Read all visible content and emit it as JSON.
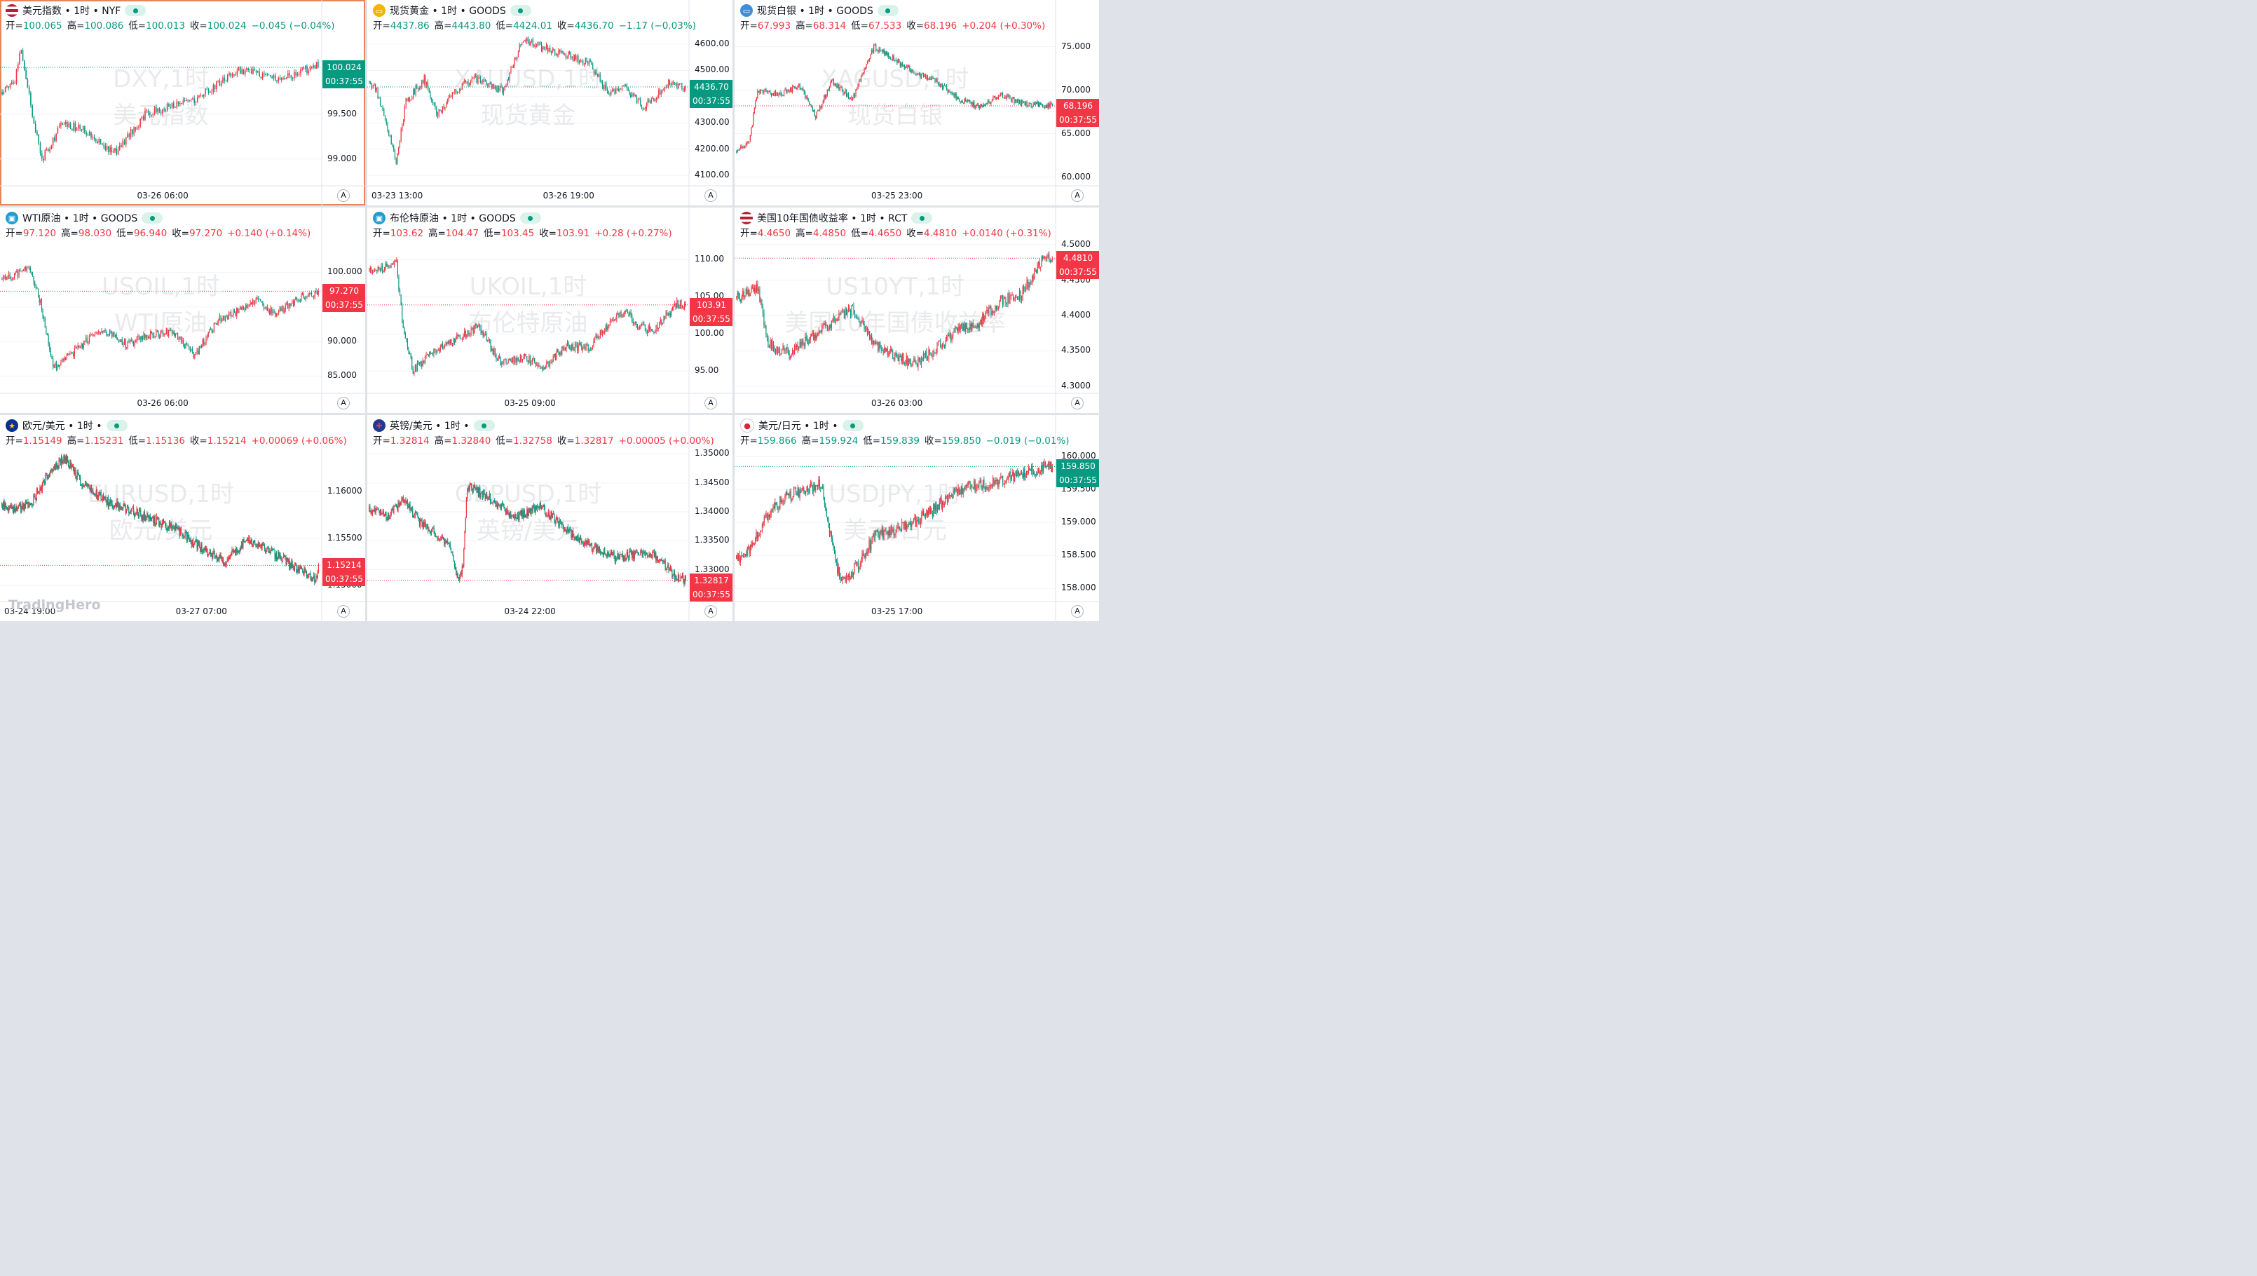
{
  "brand": "TradingHero",
  "labels": {
    "open": "开=",
    "high": "高=",
    "low": "低=",
    "close": "收="
  },
  "colors": {
    "up": "#f23645",
    "down": "#089981",
    "grid": "#f0f3fa",
    "axis_line": "#e0e3eb",
    "background": "#ffffff"
  },
  "panels": [
    {
      "title": "美元指数 • 1时 • NYF",
      "flag": "us-flag-icon",
      "wm1": "DXY,1时",
      "wm2": "美元指数",
      "ohlc": {
        "open": "100.065",
        "high": "100.086",
        "low": "100.013",
        "close": "100.024",
        "change": "−0.045 (−0.04%)"
      },
      "dir": "down",
      "price": "100.024",
      "countdown": "00:37:55",
      "yticks": [
        "99.000",
        "99.500"
      ],
      "xticks": [
        "03-26 06:00"
      ],
      "axis_btn": "A",
      "chart_data": {
        "type": "candlestick",
        "ylim": [
          98.7,
          100.4
        ],
        "y_ticks": [
          99.0,
          99.5
        ],
        "last": 100.024,
        "start": 99.75,
        "waypoints": [
          [
            0,
            99.75
          ],
          [
            8,
            99.9
          ],
          [
            12,
            100.25
          ],
          [
            18,
            99.6
          ],
          [
            25,
            99.0
          ],
          [
            38,
            99.4
          ],
          [
            55,
            99.3
          ],
          [
            70,
            99.05
          ],
          [
            90,
            99.5
          ],
          [
            120,
            99.65
          ],
          [
            150,
            100.0
          ],
          [
            175,
            99.9
          ],
          [
            200,
            100.05
          ]
        ],
        "noise": 0.05,
        "count": 200
      }
    },
    {
      "title": "现货黄金 • 1时 • GOODS",
      "flag": "gold-icon",
      "wm1": "XAUUSD,1时",
      "wm2": "现货黄金",
      "ohlc": {
        "open": "4437.86",
        "high": "4443.80",
        "low": "4424.01",
        "close": "4436.70",
        "change": "−1.17 (−0.03%)"
      },
      "dir": "down",
      "price": "4436.70",
      "countdown": "00:37:55",
      "yticks": [
        "4100.00",
        "4200.00",
        "4300.00",
        "4400.00",
        "4500.00",
        "4600.00"
      ],
      "xticks": [
        "03-23 13:00",
        "03-26 19:00"
      ],
      "axis_btn": "A",
      "chart_data": {
        "type": "candlestick",
        "ylim": [
          4060,
          4640
        ],
        "y_ticks": [
          4100,
          4200,
          4300,
          4400,
          4500,
          4600
        ],
        "last": 4436.7,
        "start": 4460,
        "waypoints": [
          [
            0,
            4460
          ],
          [
            6,
            4420
          ],
          [
            14,
            4300
          ],
          [
            22,
            4150
          ],
          [
            30,
            4380
          ],
          [
            45,
            4470
          ],
          [
            55,
            4330
          ],
          [
            70,
            4420
          ],
          [
            85,
            4470
          ],
          [
            110,
            4420
          ],
          [
            125,
            4620
          ],
          [
            140,
            4590
          ],
          [
            160,
            4560
          ],
          [
            180,
            4530
          ],
          [
            195,
            4420
          ],
          [
            210,
            4430
          ],
          [
            225,
            4360
          ],
          [
            245,
            4450
          ],
          [
            260,
            4436
          ]
        ],
        "noise": 15,
        "count": 260
      }
    },
    {
      "title": "现货白银 • 1时 • GOODS",
      "flag": "silver-icon",
      "wm1": "XAGUSD,1时",
      "wm2": "现货白银",
      "ohlc": {
        "open": "67.993",
        "high": "68.314",
        "low": "67.533",
        "close": "68.196",
        "change": "+0.204 (+0.30%)"
      },
      "dir": "up",
      "price": "68.196",
      "countdown": "00:37:55",
      "yticks": [
        "60.000",
        "65.000",
        "70.000",
        "75.000"
      ],
      "xticks": [
        "03-25 23:00"
      ],
      "axis_btn": "A",
      "chart_data": {
        "type": "candlestick",
        "ylim": [
          59,
          76.5
        ],
        "y_ticks": [
          60,
          65,
          70,
          75
        ],
        "last": 68.196,
        "start": 63,
        "waypoints": [
          [
            0,
            63
          ],
          [
            12,
            64
          ],
          [
            20,
            70
          ],
          [
            40,
            69.5
          ],
          [
            60,
            70.5
          ],
          [
            75,
            67
          ],
          [
            90,
            71
          ],
          [
            110,
            69
          ],
          [
            130,
            75
          ],
          [
            150,
            73.5
          ],
          [
            170,
            72
          ],
          [
            190,
            71
          ],
          [
            210,
            69
          ],
          [
            230,
            68
          ],
          [
            250,
            69.5
          ],
          [
            270,
            68.5
          ],
          [
            300,
            68.2
          ]
        ],
        "noise": 0.35,
        "count": 300
      }
    },
    {
      "title": "WTI原油 • 1时 • GOODS",
      "flag": "oil-icon",
      "wm1": "USOIL,1时",
      "wm2": "WTI原油",
      "ohlc": {
        "open": "97.120",
        "high": "98.030",
        "low": "96.940",
        "close": "97.270",
        "change": "+0.140 (+0.14%)"
      },
      "dir": "up",
      "price": "97.270",
      "countdown": "00:37:55",
      "yticks": [
        "85.000",
        "90.000",
        "95.000",
        "100.000"
      ],
      "xticks": [
        "03-26 06:00"
      ],
      "axis_btn": "A",
      "chart_data": {
        "type": "candlestick",
        "ylim": [
          82.5,
          104.5
        ],
        "y_ticks": [
          85,
          90,
          95,
          100
        ],
        "last": 97.27,
        "start": 99,
        "waypoints": [
          [
            0,
            99
          ],
          [
            10,
            99.5
          ],
          [
            25,
            100.5
          ],
          [
            35,
            95
          ],
          [
            45,
            86
          ],
          [
            60,
            88
          ],
          [
            80,
            91
          ],
          [
            95,
            91.5
          ],
          [
            110,
            89.5
          ],
          [
            130,
            91
          ],
          [
            150,
            91.5
          ],
          [
            170,
            88
          ],
          [
            190,
            93
          ],
          [
            210,
            94.5
          ],
          [
            225,
            96
          ],
          [
            240,
            94
          ],
          [
            260,
            96
          ],
          [
            280,
            97.3
          ]
        ],
        "noise": 0.6,
        "count": 280
      }
    },
    {
      "title": "布伦特原油 • 1时 • GOODS",
      "flag": "oil-icon",
      "wm1": "UKOIL,1时",
      "wm2": "布伦特原油",
      "ohlc": {
        "open": "103.62",
        "high": "104.47",
        "low": "103.45",
        "close": "103.91",
        "change": "+0.28 (+0.27%)"
      },
      "dir": "up",
      "price": "103.91",
      "countdown": "00:37:55",
      "yticks": [
        "95.00",
        "100.00",
        "105.00",
        "110.00"
      ],
      "xticks": [
        "03-25 09:00"
      ],
      "axis_btn": "A",
      "chart_data": {
        "type": "candlestick",
        "ylim": [
          92,
          112.5
        ],
        "y_ticks": [
          95,
          100,
          105,
          110
        ],
        "last": 103.91,
        "start": 108.5,
        "waypoints": [
          [
            0,
            108.5
          ],
          [
            15,
            109
          ],
          [
            25,
            109.5
          ],
          [
            30,
            102
          ],
          [
            40,
            95
          ],
          [
            60,
            98
          ],
          [
            80,
            99.5
          ],
          [
            100,
            101
          ],
          [
            120,
            96
          ],
          [
            140,
            97
          ],
          [
            160,
            95.5
          ],
          [
            180,
            98.5
          ],
          [
            200,
            98
          ],
          [
            220,
            101.5
          ],
          [
            235,
            103
          ],
          [
            245,
            101
          ],
          [
            260,
            100.5
          ],
          [
            280,
            104
          ],
          [
            290,
            103.9
          ]
        ],
        "noise": 0.6,
        "count": 290
      }
    },
    {
      "title": "美国10年国债收益率 • 1时 • RCT",
      "flag": "us-flag-icon",
      "wm1": "US10YT,1时",
      "wm2": "美国10年国债收益率",
      "ohlc": {
        "open": "4.4650",
        "high": "4.4850",
        "low": "4.4650",
        "close": "4.4810",
        "change": "+0.0140 (+0.31%)"
      },
      "dir": "up",
      "price": "4.4810",
      "countdown": "00:37:55",
      "yticks": [
        "4.3000",
        "4.3500",
        "4.4000",
        "4.4500",
        "4.5000"
      ],
      "xticks": [
        "03-26 03:00"
      ],
      "axis_btn": "A",
      "chart_data": {
        "type": "candlestick",
        "ylim": [
          4.29,
          4.505
        ],
        "y_ticks": [
          4.3,
          4.35,
          4.4,
          4.45,
          4.5
        ],
        "last": 4.481,
        "start": 4.425,
        "waypoints": [
          [
            0,
            4.425
          ],
          [
            10,
            4.43
          ],
          [
            20,
            4.44
          ],
          [
            30,
            4.36
          ],
          [
            50,
            4.345
          ],
          [
            70,
            4.37
          ],
          [
            90,
            4.39
          ],
          [
            110,
            4.41
          ],
          [
            130,
            4.36
          ],
          [
            150,
            4.345
          ],
          [
            170,
            4.33
          ],
          [
            190,
            4.355
          ],
          [
            210,
            4.38
          ],
          [
            230,
            4.39
          ],
          [
            250,
            4.42
          ],
          [
            270,
            4.43
          ],
          [
            290,
            4.48
          ],
          [
            300,
            4.481
          ]
        ],
        "noise": 0.008,
        "count": 300
      }
    },
    {
      "title": "欧元/美元 • 1时 •",
      "flag": "eu-flag-icon",
      "wm1": "EURUSD,1时",
      "wm2": "欧元/美元",
      "ohlc": {
        "open": "1.15149",
        "high": "1.15231",
        "low": "1.15136",
        "close": "1.15214",
        "change": "+0.00069 (+0.06%)"
      },
      "dir": "up",
      "price": "1.15214",
      "countdown": "00:37:55",
      "yticks": [
        "1.15000",
        "1.15500",
        "1.16000"
      ],
      "xticks": [
        "03-24 19:00",
        "03-27 07:00"
      ],
      "axis_btn": "A",
      "chart_data": {
        "type": "candlestick",
        "ylim": [
          1.1483,
          1.1645
        ],
        "y_ticks": [
          1.15,
          1.155,
          1.16
        ],
        "last": 1.15214,
        "start": 1.1585,
        "waypoints": [
          [
            0,
            1.1585
          ],
          [
            20,
            1.158
          ],
          [
            40,
            1.159
          ],
          [
            60,
            1.162
          ],
          [
            80,
            1.1635
          ],
          [
            100,
            1.161
          ],
          [
            130,
            1.159
          ],
          [
            160,
            1.158
          ],
          [
            190,
            1.157
          ],
          [
            220,
            1.156
          ],
          [
            250,
            1.154
          ],
          [
            280,
            1.1525
          ],
          [
            310,
            1.155
          ],
          [
            340,
            1.1535
          ],
          [
            370,
            1.152
          ],
          [
            395,
            1.1505
          ],
          [
            400,
            1.15214
          ]
        ],
        "noise": 0.0005,
        "count": 400
      }
    },
    {
      "title": "英镑/美元 • 1时 •",
      "flag": "uk-flag-icon",
      "wm1": "GBPUSD,1时",
      "wm2": "英镑/美元",
      "ohlc": {
        "open": "1.32814",
        "high": "1.32840",
        "low": "1.32758",
        "close": "1.32817",
        "change": "+0.00005 (+0.00%)"
      },
      "dir": "up",
      "price": "1.32817",
      "countdown": "00:37:55",
      "yticks": [
        "1.33000",
        "1.33500",
        "1.34000",
        "1.34500",
        "1.35000"
      ],
      "xticks": [
        "03-24 22:00"
      ],
      "axis_btn": "A",
      "chart_data": {
        "type": "candlestick",
        "ylim": [
          1.3245,
          1.3509
        ],
        "y_ticks": [
          1.33,
          1.335,
          1.34,
          1.345,
          1.35
        ],
        "last": 1.32817,
        "start": 1.3405,
        "waypoints": [
          [
            0,
            1.3405
          ],
          [
            20,
            1.339
          ],
          [
            40,
            1.342
          ],
          [
            60,
            1.338
          ],
          [
            80,
            1.336
          ],
          [
            95,
            1.334
          ],
          [
            105,
            1.328
          ],
          [
            110,
            1.331
          ],
          [
            115,
            1.3445
          ],
          [
            140,
            1.3425
          ],
          [
            170,
            1.339
          ],
          [
            200,
            1.341
          ],
          [
            230,
            1.337
          ],
          [
            260,
            1.334
          ],
          [
            290,
            1.332
          ],
          [
            320,
            1.333
          ],
          [
            340,
            1.332
          ],
          [
            360,
            1.3285
          ],
          [
            372,
            1.32817
          ]
        ],
        "noise": 0.0008,
        "count": 372
      }
    },
    {
      "title": "美元/日元 • 1时 •",
      "flag": "jp-flag-icon",
      "wm1": "USDJPY,1时",
      "wm2": "美元/日元",
      "ohlc": {
        "open": "159.866",
        "high": "159.924",
        "low": "159.839",
        "close": "159.850",
        "change": "−0.019 (−0.01%)"
      },
      "dir": "down",
      "price": "159.850",
      "countdown": "00:37:55",
      "yticks": [
        "158.000",
        "158.500",
        "159.000",
        "159.500",
        "160.000"
      ],
      "xticks": [
        "03-25 17:00"
      ],
      "axis_btn": "A",
      "chart_data": {
        "type": "candlestick",
        "ylim": [
          157.8,
          160.12
        ],
        "y_ticks": [
          158,
          158.5,
          159,
          159.5,
          160
        ],
        "last": 159.85,
        "start": 158.45,
        "waypoints": [
          [
            0,
            158.45
          ],
          [
            15,
            158.6
          ],
          [
            30,
            159.1
          ],
          [
            50,
            159.4
          ],
          [
            70,
            159.5
          ],
          [
            85,
            159.6
          ],
          [
            95,
            158.8
          ],
          [
            105,
            158.1
          ],
          [
            120,
            158.3
          ],
          [
            140,
            158.8
          ],
          [
            160,
            158.9
          ],
          [
            180,
            159.0
          ],
          [
            200,
            159.2
          ],
          [
            220,
            159.5
          ],
          [
            240,
            159.55
          ],
          [
            260,
            159.6
          ],
          [
            280,
            159.7
          ],
          [
            300,
            159.8
          ],
          [
            320,
            159.85
          ]
        ],
        "noise": 0.09,
        "count": 320
      }
    }
  ]
}
